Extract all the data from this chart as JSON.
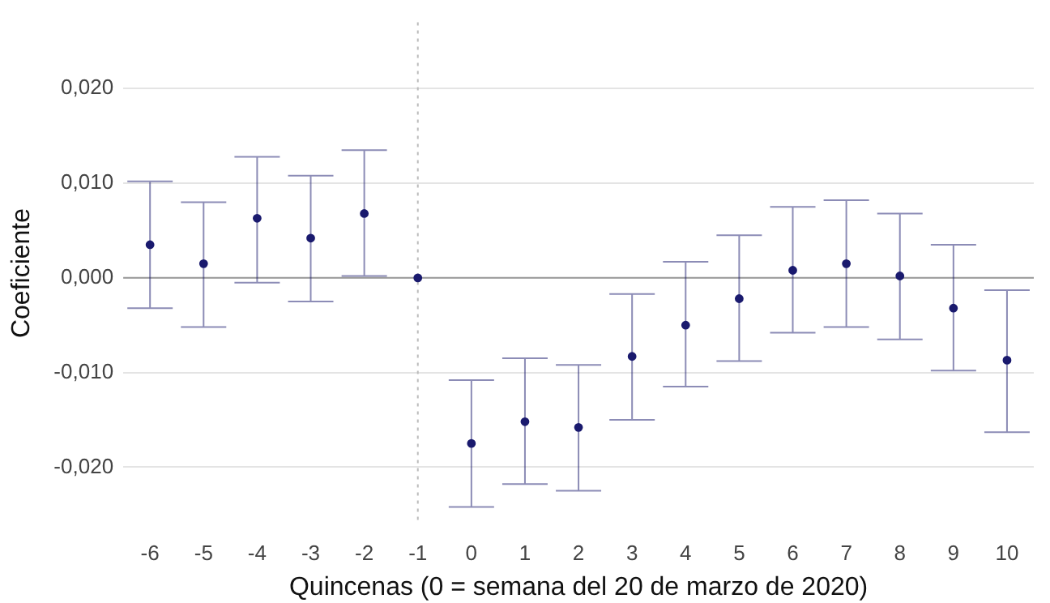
{
  "chart_data": {
    "type": "scatter",
    "xlabel": "Quincenas (0 = semana del 20 de marzo de 2020)",
    "ylabel": "Coeficiente",
    "categories": [
      "-6",
      "-5",
      "-4",
      "-3",
      "-2",
      "-1",
      "0",
      "1",
      "2",
      "3",
      "4",
      "5",
      "6",
      "7",
      "8",
      "9",
      "10"
    ],
    "series": [
      {
        "color": "#1a1a6e",
        "values": [
          0.0035,
          0.0015,
          0.0063,
          0.0042,
          0.0068,
          0,
          -0.0175,
          -0.0152,
          -0.0158,
          -0.0083,
          -0.005,
          -0.0022,
          0.0008,
          0.0015,
          0.0002,
          -0.0032,
          -0.0087
        ],
        "errors": [
          [
            -0.0032,
            0.0102
          ],
          [
            -0.0052,
            0.008
          ],
          [
            -0.0005,
            0.0128
          ],
          [
            -0.0025,
            0.0108
          ],
          [
            0.0002,
            0.0135
          ],
          null,
          [
            -0.0242,
            -0.0108
          ],
          [
            -0.0218,
            -0.0085
          ],
          [
            -0.0225,
            -0.0092
          ],
          [
            -0.015,
            -0.0017
          ],
          [
            -0.0115,
            0.0017
          ],
          [
            -0.0088,
            0.0045
          ],
          [
            -0.0058,
            0.0075
          ],
          [
            -0.0052,
            0.0082
          ],
          [
            -0.0065,
            0.0068
          ],
          [
            -0.0098,
            0.0035
          ],
          [
            -0.0163,
            -0.0013
          ]
        ]
      }
    ],
    "ylim": [
      -0.026,
      0.027
    ],
    "yticks": [
      {
        "value": -0.02,
        "label": "-0,020"
      },
      {
        "value": -0.01,
        "label": "-0,010"
      },
      {
        "value": 0,
        "label": "0,000"
      },
      {
        "value": 0.01,
        "label": "0,010"
      },
      {
        "value": 0.02,
        "label": "0,020"
      }
    ],
    "grid": "y",
    "legend": false,
    "marker": "circle",
    "ref_lines": [
      {
        "axis": "y",
        "value": 0,
        "color": "#999999",
        "line_style": "solid"
      },
      {
        "axis": "x",
        "value": "-1",
        "color": "#bbbbbb",
        "line_style": "dotted"
      }
    ]
  }
}
